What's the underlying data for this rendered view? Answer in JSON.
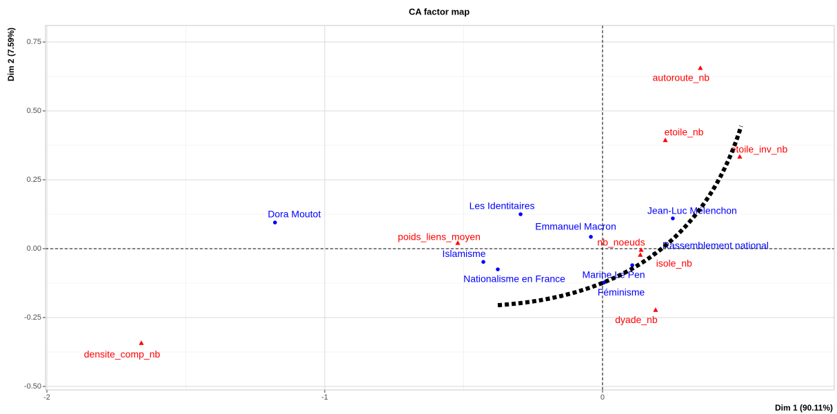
{
  "chart_data": {
    "type": "scatter",
    "title": "CA factor map",
    "x_label": "Dim 1 (90.11%)",
    "y_label": "Dim 2 (7.59%)",
    "xlim": [
      -2.005,
      0.834
    ],
    "ylim": [
      -0.5125,
      0.81
    ],
    "xticks": [
      -2,
      -1,
      0
    ],
    "yticks": [
      {
        "value": -0.5,
        "label": "-0.50"
      },
      -0.25,
      {
        "value": 0,
        "label": "0.00"
      },
      0.25,
      {
        "value": 0.5,
        "label": "0.50"
      },
      0.75
    ],
    "grid": true,
    "series": [
      {
        "color": "#0000ff",
        "marker": "circle",
        "labels": [
          "Dora Moutot",
          "Les Identitaires",
          "Emmanuel Macron",
          "Islamisme",
          "Nationalisme en France",
          "Jean-Luc Mélenchon",
          "Rassemblement national",
          "Marine Le Pen",
          "Féminisme"
        ],
        "x": [
          -1.179,
          -0.295,
          -0.042,
          -0.429,
          -0.377,
          0.253,
          0.186,
          0.107,
          0.005
        ],
        "values": [
          0.095,
          0.125,
          0.043,
          -0.048,
          -0.075,
          0.11,
          -0.018,
          -0.06,
          -0.123
        ]
      },
      {
        "color": "#ff0000",
        "marker": "triangle",
        "labels": [
          "autoroute_nb",
          "etoile_nb",
          "etoile_inv_nb",
          "poids_liens_moyen",
          "nb_noeuds",
          "isole_nb",
          "dyade_nb",
          "densite_comp_nb"
        ],
        "x": [
          0.352,
          0.226,
          0.494,
          -0.521,
          0.139,
          0.136,
          0.191,
          -1.66
        ],
        "values": [
          0.655,
          0.393,
          0.333,
          0.02,
          -0.005,
          -0.023,
          -0.223,
          -0.343
        ]
      }
    ]
  }
}
